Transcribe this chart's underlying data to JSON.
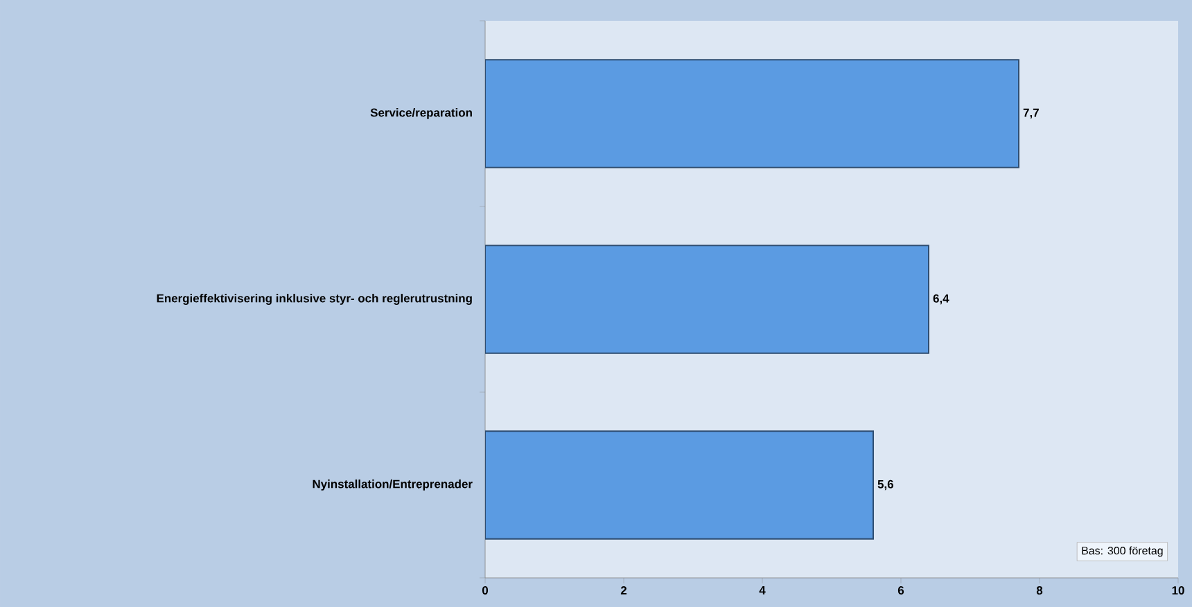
{
  "chart_data": {
    "type": "bar",
    "orientation": "horizontal",
    "categories": [
      "Service/reparation",
      "Energieffektivisering inklusive styr- och reglerutrustning",
      "Nyinstallation/Entreprenader"
    ],
    "values": [
      7.7,
      6.4,
      5.6
    ],
    "value_labels": [
      "7,7",
      "6,4",
      "5,6"
    ],
    "color": "#5b9be2",
    "xlim": [
      0,
      10
    ],
    "xticks": [
      0,
      2,
      4,
      6,
      8,
      10
    ],
    "annotations": [
      "Bas: 300 företag"
    ]
  }
}
